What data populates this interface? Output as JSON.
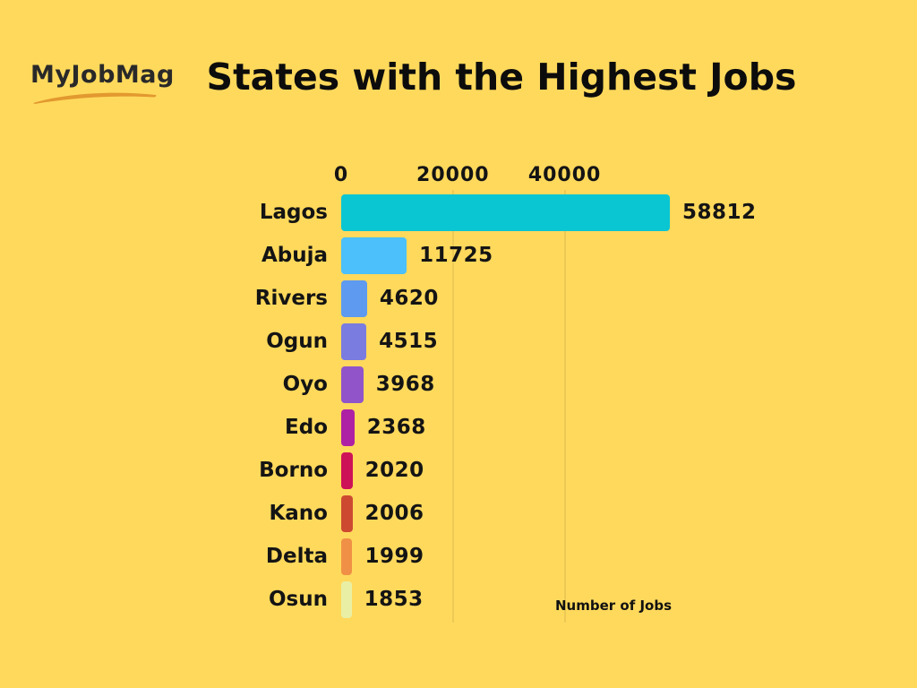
{
  "page": {
    "background_color": "#FFD95C"
  },
  "logo": {
    "text": "MyJobMag",
    "text_color": "#292929",
    "swoosh_color": "#E2992F"
  },
  "title": "States with the Highest Jobs",
  "chart_data": {
    "type": "bar",
    "orientation": "horizontal",
    "title": "States with the Highest Jobs",
    "xlabel": "Number of Jobs",
    "ylabel": "",
    "categories": [
      "Lagos",
      "Abuja",
      "Rivers",
      "Ogun",
      "Oyo",
      "Edo",
      "Borno",
      "Kano",
      "Delta",
      "Osun"
    ],
    "values": [
      58812,
      11725,
      4620,
      4515,
      3968,
      2368,
      2020,
      2006,
      1999,
      1853
    ],
    "value_labels": [
      "58812",
      "11725",
      "4620",
      "4515",
      "3968",
      "2368",
      "2020",
      "2006",
      "1999",
      "1853"
    ],
    "bar_colors": [
      "#0AC6D3",
      "#4BC0FA",
      "#5E9AEF",
      "#7B7CDF",
      "#9155C9",
      "#AE21A4",
      "#CE1257",
      "#CD4A31",
      "#F09046",
      "#E9F0A5"
    ],
    "x_ticks": [
      {
        "label": "0",
        "value": 0
      },
      {
        "label": "20000",
        "value": 20000
      },
      {
        "label": "40000",
        "value": 40000
      }
    ],
    "xlim": [
      0,
      60000
    ],
    "grid": "vertical-faint",
    "legend": "none"
  }
}
